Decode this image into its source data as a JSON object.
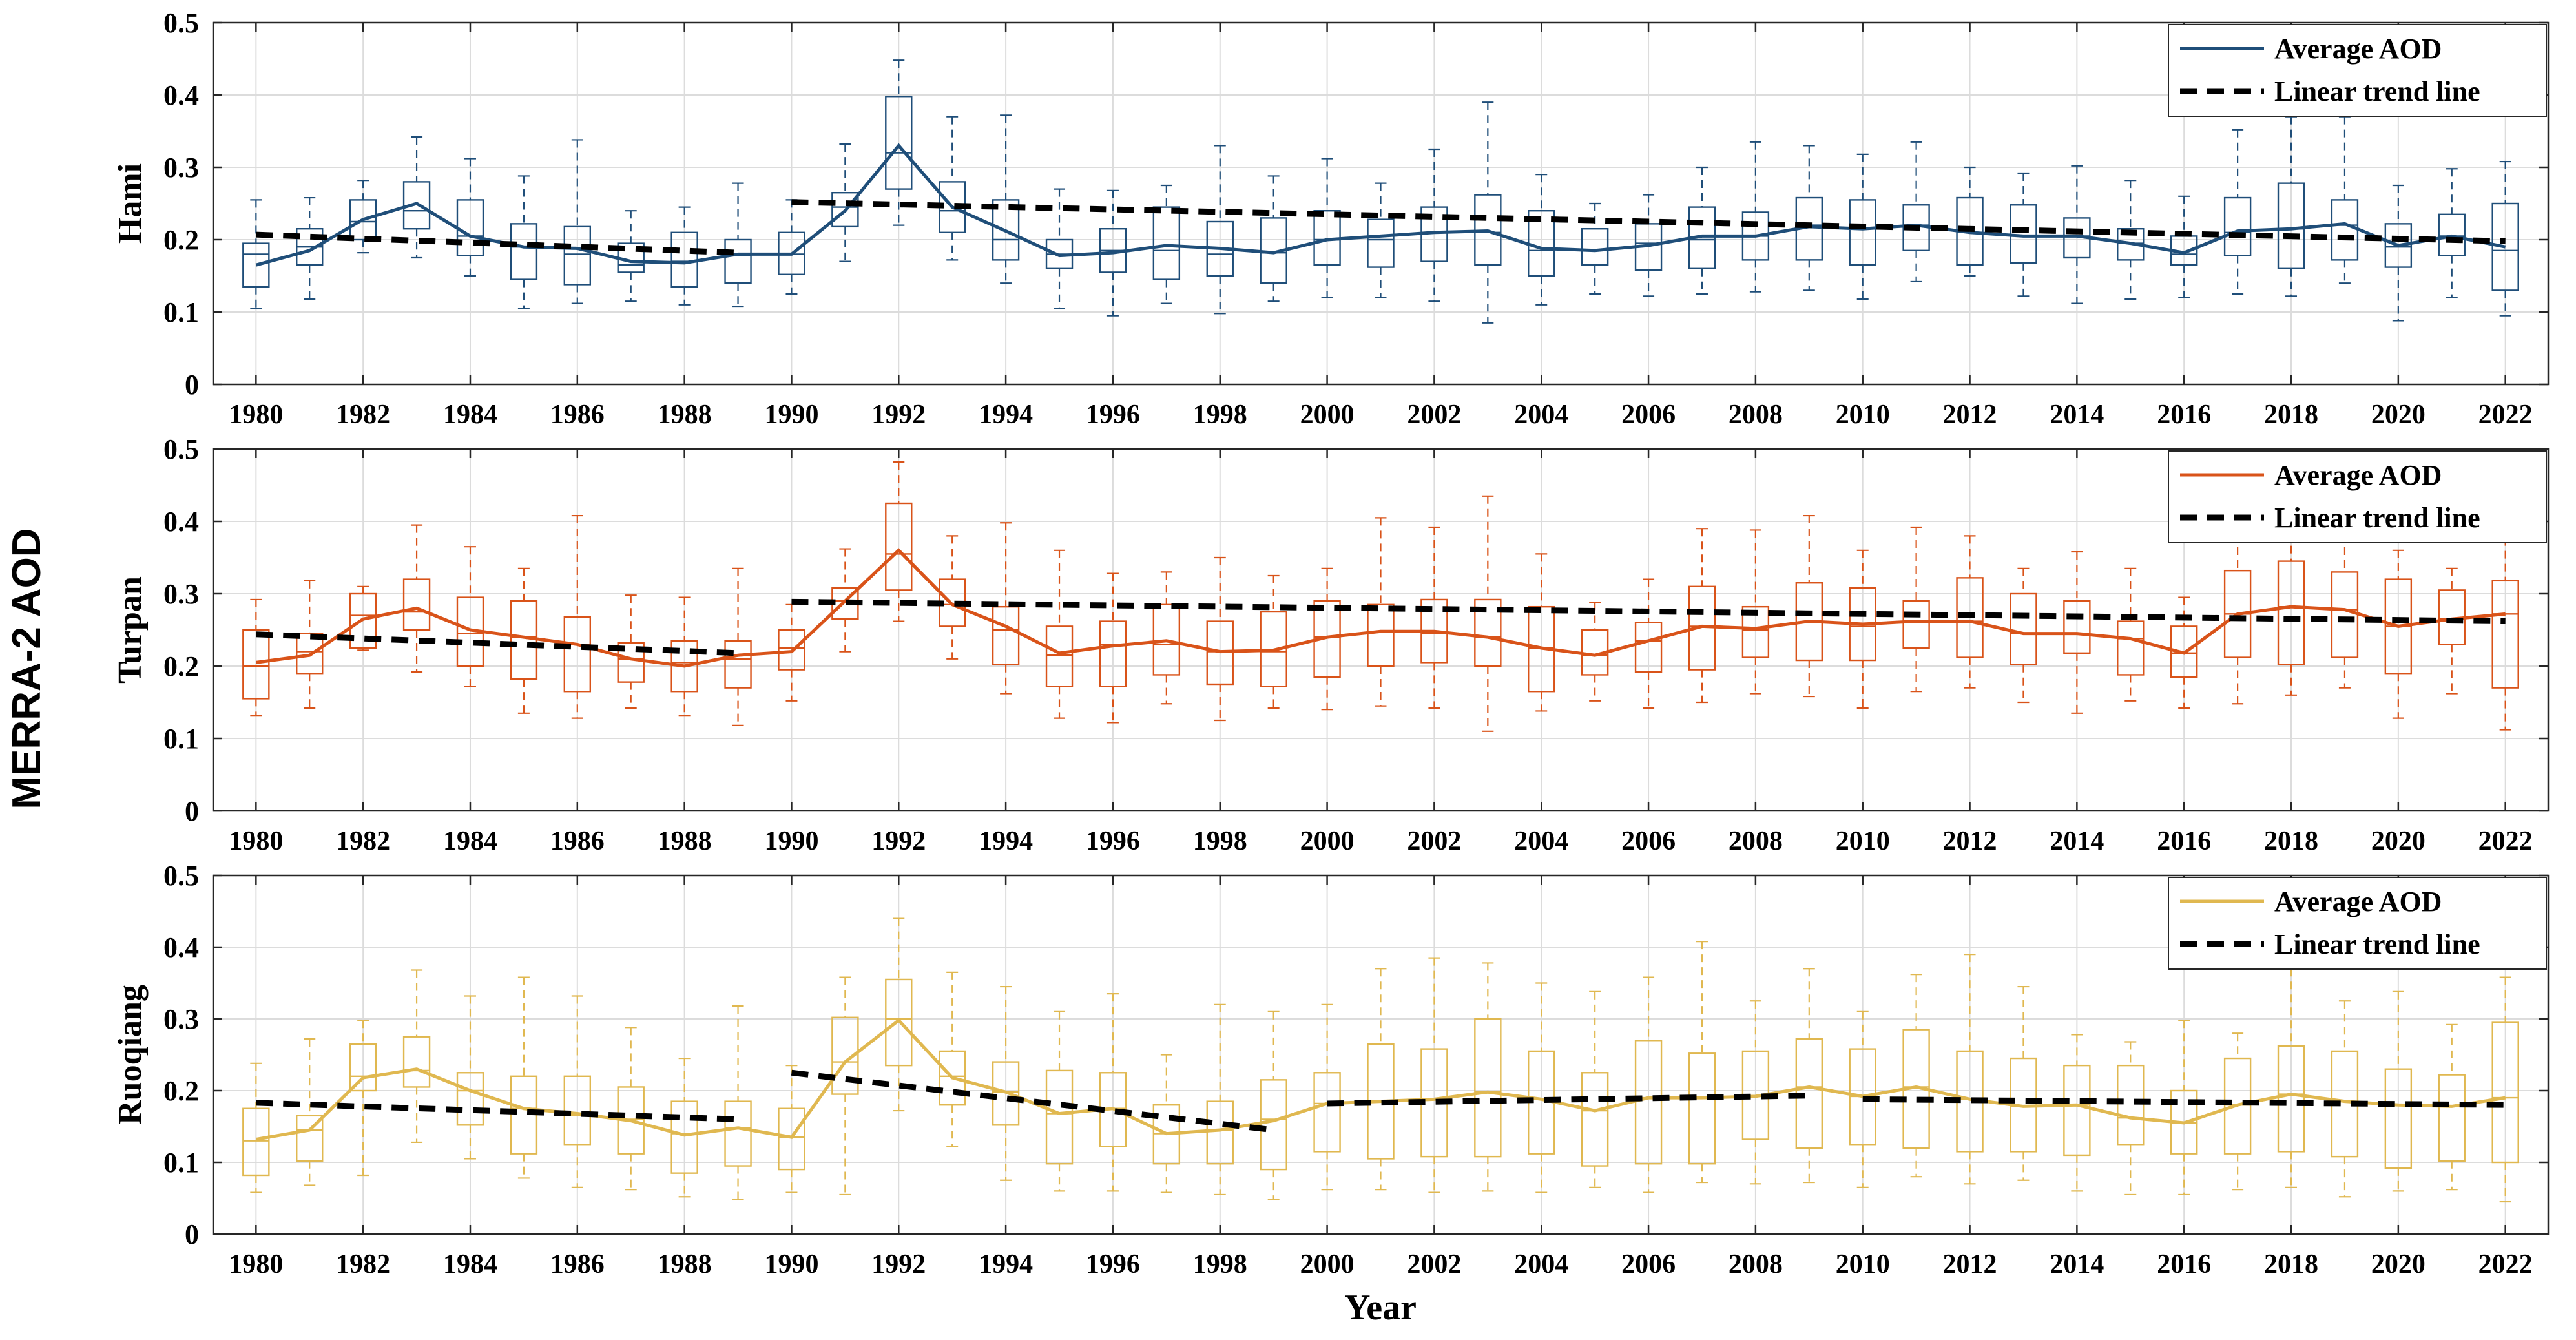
{
  "figure": {
    "y_super_label": "MERRA-2 AOD",
    "xlabel": "Year"
  },
  "chart_data": [
    {
      "type": "box+line",
      "station": "Hami",
      "ylabel": "Hami",
      "color": "#1f4e79",
      "years": [
        1980,
        1981,
        1982,
        1983,
        1984,
        1985,
        1986,
        1987,
        1988,
        1989,
        1990,
        1991,
        1992,
        1993,
        1994,
        1995,
        1996,
        1997,
        1998,
        1999,
        2000,
        2001,
        2002,
        2003,
        2004,
        2005,
        2006,
        2007,
        2008,
        2009,
        2010,
        2011,
        2012,
        2013,
        2014,
        2015,
        2016,
        2017,
        2018,
        2019,
        2020,
        2021,
        2022
      ],
      "xticks": [
        1980,
        1982,
        1984,
        1986,
        1988,
        1990,
        1992,
        1994,
        1996,
        1998,
        2000,
        2002,
        2004,
        2006,
        2008,
        2010,
        2012,
        2014,
        2016,
        2018,
        2020,
        2022
      ],
      "xlim": [
        1979.2,
        2022.8
      ],
      "ylim": [
        0,
        0.5
      ],
      "yticks": [
        0,
        0.1,
        0.2,
        0.3,
        0.4,
        0.5
      ],
      "grid": true,
      "legend_position": "top-right",
      "legend": [
        "Average AOD",
        "Linear trend line"
      ],
      "mean": [
        0.165,
        0.185,
        0.228,
        0.25,
        0.205,
        0.19,
        0.188,
        0.17,
        0.168,
        0.18,
        0.18,
        0.24,
        0.33,
        0.245,
        0.212,
        0.178,
        0.182,
        0.192,
        0.188,
        0.182,
        0.2,
        0.205,
        0.21,
        0.212,
        0.188,
        0.185,
        0.192,
        0.205,
        0.205,
        0.218,
        0.215,
        0.22,
        0.21,
        0.205,
        0.205,
        0.195,
        0.182,
        0.212,
        0.215,
        0.222,
        0.192,
        0.205,
        0.19
      ],
      "q1": [
        0.135,
        0.165,
        0.2,
        0.215,
        0.178,
        0.145,
        0.138,
        0.155,
        0.135,
        0.14,
        0.152,
        0.218,
        0.27,
        0.21,
        0.172,
        0.16,
        0.155,
        0.145,
        0.15,
        0.14,
        0.165,
        0.162,
        0.17,
        0.165,
        0.15,
        0.165,
        0.158,
        0.16,
        0.172,
        0.172,
        0.165,
        0.185,
        0.165,
        0.168,
        0.175,
        0.172,
        0.165,
        0.178,
        0.16,
        0.172,
        0.162,
        0.178,
        0.13
      ],
      "median": [
        0.18,
        0.19,
        0.225,
        0.24,
        0.205,
        0.19,
        0.18,
        0.165,
        0.17,
        0.178,
        0.18,
        0.245,
        0.32,
        0.24,
        0.2,
        0.18,
        0.185,
        0.185,
        0.18,
        0.182,
        0.2,
        0.2,
        0.21,
        0.21,
        0.185,
        0.185,
        0.195,
        0.2,
        0.205,
        0.22,
        0.215,
        0.22,
        0.21,
        0.205,
        0.205,
        0.195,
        0.18,
        0.21,
        0.215,
        0.22,
        0.19,
        0.205,
        0.185
      ],
      "q3": [
        0.195,
        0.215,
        0.255,
        0.28,
        0.255,
        0.222,
        0.218,
        0.195,
        0.21,
        0.2,
        0.21,
        0.265,
        0.398,
        0.28,
        0.255,
        0.2,
        0.215,
        0.245,
        0.225,
        0.23,
        0.24,
        0.228,
        0.245,
        0.262,
        0.24,
        0.215,
        0.222,
        0.245,
        0.238,
        0.258,
        0.255,
        0.248,
        0.258,
        0.248,
        0.23,
        0.215,
        0.205,
        0.258,
        0.278,
        0.255,
        0.222,
        0.235,
        0.25
      ],
      "lower": [
        0.105,
        0.118,
        0.182,
        0.175,
        0.15,
        0.105,
        0.112,
        0.115,
        0.11,
        0.108,
        0.125,
        0.17,
        0.22,
        0.172,
        0.14,
        0.105,
        0.095,
        0.112,
        0.098,
        0.115,
        0.12,
        0.12,
        0.115,
        0.085,
        0.11,
        0.125,
        0.122,
        0.125,
        0.128,
        0.13,
        0.118,
        0.142,
        0.15,
        0.122,
        0.112,
        0.118,
        0.12,
        0.125,
        0.122,
        0.14,
        0.088,
        0.12,
        0.095
      ],
      "upper": [
        0.255,
        0.258,
        0.282,
        0.342,
        0.312,
        0.288,
        0.338,
        0.24,
        0.245,
        0.278,
        0.255,
        0.332,
        0.448,
        0.37,
        0.372,
        0.27,
        0.268,
        0.275,
        0.33,
        0.288,
        0.312,
        0.278,
        0.325,
        0.39,
        0.29,
        0.25,
        0.262,
        0.3,
        0.335,
        0.33,
        0.318,
        0.335,
        0.3,
        0.292,
        0.302,
        0.282,
        0.26,
        0.352,
        0.37,
        0.37,
        0.275,
        0.298,
        0.308
      ],
      "trend_segments": [
        {
          "from": 1980,
          "to": 1989,
          "start": 0.207,
          "end": 0.182
        },
        {
          "from": 1990,
          "to": 2022,
          "start": 0.252,
          "end": 0.198
        }
      ]
    },
    {
      "type": "box+line",
      "station": "Turpan",
      "ylabel": "Turpan",
      "color": "#d95319",
      "years": [
        1980,
        1981,
        1982,
        1983,
        1984,
        1985,
        1986,
        1987,
        1988,
        1989,
        1990,
        1991,
        1992,
        1993,
        1994,
        1995,
        1996,
        1997,
        1998,
        1999,
        2000,
        2001,
        2002,
        2003,
        2004,
        2005,
        2006,
        2007,
        2008,
        2009,
        2010,
        2011,
        2012,
        2013,
        2014,
        2015,
        2016,
        2017,
        2018,
        2019,
        2020,
        2021,
        2022
      ],
      "xticks": [
        1980,
        1982,
        1984,
        1986,
        1988,
        1990,
        1992,
        1994,
        1996,
        1998,
        2000,
        2002,
        2004,
        2006,
        2008,
        2010,
        2012,
        2014,
        2016,
        2018,
        2020,
        2022
      ],
      "xlim": [
        1979.2,
        2022.8
      ],
      "ylim": [
        0,
        0.5
      ],
      "yticks": [
        0,
        0.1,
        0.2,
        0.3,
        0.4,
        0.5
      ],
      "grid": true,
      "legend_position": "top-right",
      "legend": [
        "Average AOD",
        "Linear trend line"
      ],
      "mean": [
        0.205,
        0.215,
        0.265,
        0.28,
        0.25,
        0.24,
        0.23,
        0.21,
        0.2,
        0.215,
        0.22,
        0.29,
        0.36,
        0.285,
        0.255,
        0.218,
        0.228,
        0.235,
        0.22,
        0.222,
        0.24,
        0.248,
        0.248,
        0.24,
        0.225,
        0.215,
        0.235,
        0.255,
        0.252,
        0.262,
        0.258,
        0.262,
        0.262,
        0.245,
        0.245,
        0.238,
        0.218,
        0.272,
        0.282,
        0.278,
        0.255,
        0.265,
        0.272
      ],
      "q1": [
        0.155,
        0.19,
        0.225,
        0.25,
        0.2,
        0.182,
        0.165,
        0.178,
        0.165,
        0.17,
        0.195,
        0.265,
        0.305,
        0.255,
        0.202,
        0.172,
        0.172,
        0.188,
        0.175,
        0.172,
        0.185,
        0.2,
        0.205,
        0.2,
        0.165,
        0.188,
        0.192,
        0.195,
        0.212,
        0.208,
        0.208,
        0.225,
        0.212,
        0.202,
        0.218,
        0.188,
        0.185,
        0.212,
        0.202,
        0.212,
        0.19,
        0.23,
        0.17
      ],
      "median": [
        0.2,
        0.22,
        0.27,
        0.275,
        0.245,
        0.24,
        0.23,
        0.21,
        0.205,
        0.21,
        0.225,
        0.29,
        0.355,
        0.285,
        0.25,
        0.215,
        0.23,
        0.23,
        0.22,
        0.22,
        0.24,
        0.248,
        0.245,
        0.24,
        0.225,
        0.215,
        0.235,
        0.255,
        0.25,
        0.26,
        0.255,
        0.262,
        0.262,
        0.245,
        0.245,
        0.238,
        0.218,
        0.272,
        0.282,
        0.278,
        0.255,
        0.265,
        0.272
      ],
      "q3": [
        0.25,
        0.245,
        0.3,
        0.32,
        0.295,
        0.29,
        0.268,
        0.232,
        0.235,
        0.235,
        0.25,
        0.308,
        0.425,
        0.32,
        0.282,
        0.255,
        0.262,
        0.285,
        0.262,
        0.275,
        0.29,
        0.285,
        0.292,
        0.292,
        0.282,
        0.25,
        0.26,
        0.31,
        0.282,
        0.315,
        0.308,
        0.29,
        0.322,
        0.3,
        0.29,
        0.262,
        0.255,
        0.332,
        0.345,
        0.33,
        0.32,
        0.305,
        0.318
      ],
      "lower": [
        0.132,
        0.142,
        0.222,
        0.192,
        0.172,
        0.135,
        0.128,
        0.142,
        0.132,
        0.118,
        0.152,
        0.22,
        0.262,
        0.21,
        0.162,
        0.128,
        0.122,
        0.148,
        0.125,
        0.142,
        0.14,
        0.145,
        0.142,
        0.11,
        0.138,
        0.152,
        0.142,
        0.15,
        0.162,
        0.158,
        0.142,
        0.165,
        0.17,
        0.15,
        0.135,
        0.152,
        0.142,
        0.148,
        0.16,
        0.17,
        0.128,
        0.162,
        0.112
      ],
      "upper": [
        0.292,
        0.318,
        0.31,
        0.395,
        0.365,
        0.335,
        0.408,
        0.298,
        0.295,
        0.335,
        0.285,
        0.362,
        0.482,
        0.38,
        0.398,
        0.36,
        0.328,
        0.33,
        0.35,
        0.325,
        0.335,
        0.405,
        0.392,
        0.435,
        0.355,
        0.288,
        0.32,
        0.39,
        0.388,
        0.408,
        0.36,
        0.392,
        0.38,
        0.335,
        0.358,
        0.335,
        0.295,
        0.4,
        0.42,
        0.4,
        0.36,
        0.335,
        0.395
      ],
      "trend_segments": [
        {
          "from": 1980,
          "to": 1989,
          "start": 0.244,
          "end": 0.218
        },
        {
          "from": 1990,
          "to": 2022,
          "start": 0.289,
          "end": 0.262
        }
      ]
    },
    {
      "type": "box+line",
      "station": "Ruoqiang",
      "ylabel": "Ruoqiang",
      "color": "#e0b850",
      "years": [
        1980,
        1981,
        1982,
        1983,
        1984,
        1985,
        1986,
        1987,
        1988,
        1989,
        1990,
        1991,
        1992,
        1993,
        1994,
        1995,
        1996,
        1997,
        1998,
        1999,
        2000,
        2001,
        2002,
        2003,
        2004,
        2005,
        2006,
        2007,
        2008,
        2009,
        2010,
        2011,
        2012,
        2013,
        2014,
        2015,
        2016,
        2017,
        2018,
        2019,
        2020,
        2021,
        2022
      ],
      "xticks": [
        1980,
        1982,
        1984,
        1986,
        1988,
        1990,
        1992,
        1994,
        1996,
        1998,
        2000,
        2002,
        2004,
        2006,
        2008,
        2010,
        2012,
        2014,
        2016,
        2018,
        2020,
        2022
      ],
      "xlim": [
        1979.2,
        2022.8
      ],
      "ylim": [
        0,
        0.5
      ],
      "yticks": [
        0,
        0.1,
        0.2,
        0.3,
        0.4,
        0.5
      ],
      "grid": true,
      "legend_position": "top-right",
      "legend": [
        "Average AOD",
        "Linear trend line"
      ],
      "mean": [
        0.132,
        0.145,
        0.218,
        0.23,
        0.2,
        0.175,
        0.168,
        0.158,
        0.138,
        0.148,
        0.135,
        0.24,
        0.298,
        0.218,
        0.198,
        0.168,
        0.175,
        0.14,
        0.145,
        0.158,
        0.182,
        0.185,
        0.188,
        0.198,
        0.188,
        0.172,
        0.19,
        0.19,
        0.192,
        0.205,
        0.192,
        0.205,
        0.188,
        0.178,
        0.18,
        0.162,
        0.155,
        0.18,
        0.195,
        0.185,
        0.18,
        0.178,
        0.19
      ],
      "q1": [
        0.082,
        0.102,
        0.2,
        0.205,
        0.152,
        0.112,
        0.125,
        0.112,
        0.085,
        0.095,
        0.09,
        0.195,
        0.235,
        0.18,
        0.152,
        0.098,
        0.122,
        0.098,
        0.098,
        0.09,
        0.115,
        0.105,
        0.108,
        0.108,
        0.112,
        0.095,
        0.098,
        0.098,
        0.132,
        0.12,
        0.125,
        0.12,
        0.115,
        0.115,
        0.11,
        0.125,
        0.112,
        0.112,
        0.115,
        0.108,
        0.092,
        0.102,
        0.1
      ],
      "median": [
        0.13,
        0.145,
        0.22,
        0.228,
        0.2,
        0.175,
        0.165,
        0.16,
        0.14,
        0.148,
        0.135,
        0.24,
        0.3,
        0.22,
        0.198,
        0.168,
        0.175,
        0.14,
        0.145,
        0.16,
        0.182,
        0.185,
        0.188,
        0.198,
        0.188,
        0.172,
        0.19,
        0.19,
        0.192,
        0.205,
        0.192,
        0.205,
        0.188,
        0.178,
        0.18,
        0.162,
        0.155,
        0.18,
        0.195,
        0.185,
        0.18,
        0.178,
        0.19
      ],
      "q3": [
        0.175,
        0.165,
        0.265,
        0.275,
        0.225,
        0.22,
        0.22,
        0.205,
        0.185,
        0.185,
        0.175,
        0.302,
        0.355,
        0.255,
        0.24,
        0.228,
        0.225,
        0.18,
        0.185,
        0.215,
        0.225,
        0.265,
        0.258,
        0.3,
        0.255,
        0.225,
        0.27,
        0.252,
        0.255,
        0.272,
        0.258,
        0.285,
        0.255,
        0.245,
        0.235,
        0.235,
        0.2,
        0.245,
        0.262,
        0.255,
        0.23,
        0.222,
        0.295
      ],
      "lower": [
        0.058,
        0.068,
        0.082,
        0.128,
        0.105,
        0.078,
        0.065,
        0.062,
        0.052,
        0.048,
        0.058,
        0.055,
        0.172,
        0.122,
        0.075,
        0.06,
        0.06,
        0.058,
        0.055,
        0.048,
        0.062,
        0.062,
        0.058,
        0.06,
        0.058,
        0.065,
        0.058,
        0.072,
        0.07,
        0.072,
        0.065,
        0.08,
        0.07,
        0.075,
        0.06,
        0.055,
        0.055,
        0.062,
        0.065,
        0.052,
        0.06,
        0.062,
        0.045
      ],
      "upper": [
        0.238,
        0.272,
        0.298,
        0.368,
        0.332,
        0.358,
        0.332,
        0.288,
        0.245,
        0.318,
        0.235,
        0.358,
        0.44,
        0.365,
        0.345,
        0.31,
        0.335,
        0.25,
        0.32,
        0.31,
        0.32,
        0.37,
        0.385,
        0.378,
        0.35,
        0.338,
        0.358,
        0.408,
        0.325,
        0.37,
        0.31,
        0.362,
        0.39,
        0.345,
        0.278,
        0.268,
        0.298,
        0.28,
        0.37,
        0.325,
        0.338,
        0.292,
        0.358
      ],
      "trend_segments": [
        {
          "from": 1980,
          "to": 1989,
          "start": 0.183,
          "end": 0.16
        },
        {
          "from": 1990,
          "to": 1999,
          "start": 0.225,
          "end": 0.145
        },
        {
          "from": 2000,
          "to": 2009,
          "start": 0.182,
          "end": 0.193
        },
        {
          "from": 2010,
          "to": 2022,
          "start": 0.188,
          "end": 0.18
        }
      ]
    }
  ]
}
